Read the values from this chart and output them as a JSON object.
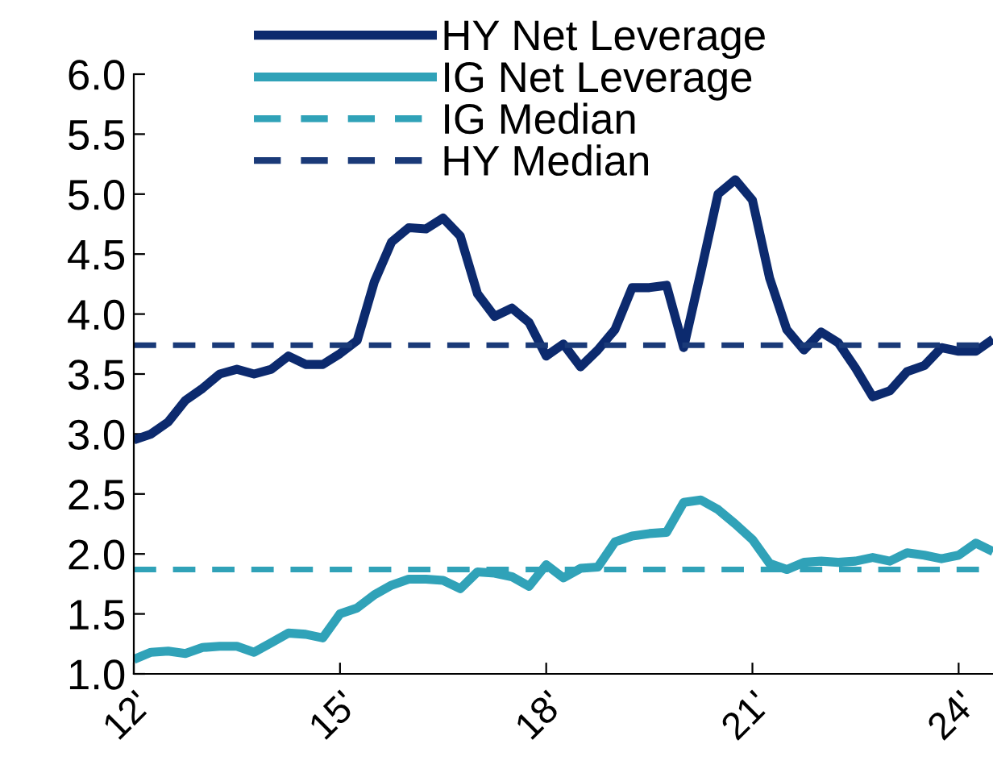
{
  "chart_data": {
    "type": "line",
    "x": [
      12,
      12.25,
      12.5,
      12.75,
      13,
      13.25,
      13.5,
      13.75,
      14,
      14.25,
      14.5,
      14.75,
      15,
      15.25,
      15.5,
      15.75,
      16,
      16.25,
      16.5,
      16.75,
      17,
      17.25,
      17.5,
      17.75,
      18,
      18.25,
      18.5,
      18.75,
      19,
      19.25,
      19.5,
      19.75,
      20,
      20.25,
      20.5,
      20.75,
      21,
      21.25,
      21.5,
      21.75,
      22,
      22.25,
      22.5,
      22.75,
      23,
      23.25,
      23.5,
      23.75,
      24,
      24.25,
      24.5
    ],
    "series": [
      {
        "name": "HY Net Leverage",
        "color": "#0c2a6e",
        "values": [
          2.95,
          3.0,
          3.1,
          3.28,
          3.38,
          3.5,
          3.54,
          3.5,
          3.54,
          3.65,
          3.58,
          3.58,
          3.67,
          3.78,
          4.27,
          4.6,
          4.72,
          4.71,
          4.8,
          4.65,
          4.17,
          3.98,
          4.05,
          3.93,
          3.65,
          3.75,
          3.56,
          3.7,
          3.87,
          4.22,
          4.22,
          4.24,
          3.72,
          4.35,
          5.0,
          5.12,
          4.95,
          4.3,
          3.87,
          3.7,
          3.85,
          3.76,
          3.55,
          3.31,
          3.36,
          3.52,
          3.57,
          3.72,
          3.69,
          3.69,
          3.79
        ]
      },
      {
        "name": "IG Net Leverage",
        "color": "#30a2b8",
        "values": [
          1.12,
          1.18,
          1.19,
          1.17,
          1.22,
          1.23,
          1.23,
          1.18,
          1.26,
          1.34,
          1.33,
          1.3,
          1.5,
          1.55,
          1.66,
          1.74,
          1.79,
          1.79,
          1.78,
          1.71,
          1.85,
          1.84,
          1.81,
          1.73,
          1.91,
          1.8,
          1.88,
          1.89,
          2.1,
          2.15,
          2.17,
          2.18,
          2.43,
          2.45,
          2.37,
          2.25,
          2.12,
          1.92,
          1.87,
          1.93,
          1.94,
          1.93,
          1.94,
          1.97,
          1.94,
          2.01,
          1.99,
          1.96,
          1.99,
          2.09,
          2.02
        ]
      }
    ],
    "ref_lines": [
      {
        "axis": "y",
        "value": 1.87,
        "label": "IG Median",
        "color": "#30a2b8",
        "line_style": "dashed"
      },
      {
        "axis": "y",
        "value": 3.74,
        "label": "HY Median",
        "color": "#1a3a78",
        "line_style": "dashed"
      }
    ],
    "xlim": [
      12,
      24.5
    ],
    "xticks": [
      {
        "value": 12,
        "label": "12'"
      },
      {
        "value": 15,
        "label": "15'"
      },
      {
        "value": 18,
        "label": "18'"
      },
      {
        "value": 21,
        "label": "21'"
      },
      {
        "value": 24,
        "label": "24'"
      }
    ],
    "ylim": [
      1.0,
      6.0
    ],
    "yticks": [
      {
        "value": 1.0,
        "label": "1.0"
      },
      {
        "value": 1.5,
        "label": "1.5"
      },
      {
        "value": 2.0,
        "label": "2.0"
      },
      {
        "value": 2.5,
        "label": "2.5"
      },
      {
        "value": 3.0,
        "label": "3.0"
      },
      {
        "value": 3.5,
        "label": "3.5"
      },
      {
        "value": 4.0,
        "label": "4.0"
      },
      {
        "value": 4.5,
        "label": "4.5"
      },
      {
        "value": 5.0,
        "label": "5.0"
      },
      {
        "value": 5.5,
        "label": "5.5"
      },
      {
        "value": 6.0,
        "label": "6.0"
      }
    ],
    "legend": "top left",
    "grid": false,
    "marker": "none",
    "line_style": "solid"
  }
}
